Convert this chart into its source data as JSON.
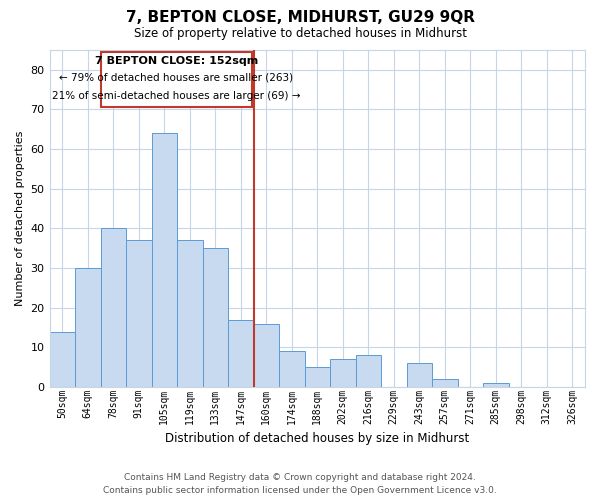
{
  "title": "7, BEPTON CLOSE, MIDHURST, GU29 9QR",
  "subtitle": "Size of property relative to detached houses in Midhurst",
  "xlabel": "Distribution of detached houses by size in Midhurst",
  "ylabel": "Number of detached properties",
  "bar_labels": [
    "50sqm",
    "64sqm",
    "78sqm",
    "91sqm",
    "105sqm",
    "119sqm",
    "133sqm",
    "147sqm",
    "160sqm",
    "174sqm",
    "188sqm",
    "202sqm",
    "216sqm",
    "229sqm",
    "243sqm",
    "257sqm",
    "271sqm",
    "285sqm",
    "298sqm",
    "312sqm",
    "326sqm"
  ],
  "bar_heights": [
    14,
    30,
    40,
    37,
    64,
    37,
    35,
    17,
    16,
    9,
    5,
    7,
    8,
    0,
    6,
    2,
    0,
    1,
    0,
    0,
    0
  ],
  "bar_color": "#c8daf0",
  "bar_edge_color": "#5b9bd5",
  "vline_x": 7.5,
  "vline_color": "#c0392b",
  "ylim": [
    0,
    85
  ],
  "yticks": [
    0,
    10,
    20,
    30,
    40,
    50,
    60,
    70,
    80
  ],
  "annotation_title": "7 BEPTON CLOSE: 152sqm",
  "annotation_line1": "← 79% of detached houses are smaller (263)",
  "annotation_line2": "21% of semi-detached houses are larger (69) →",
  "annotation_box_color": "#ffffff",
  "annotation_box_edge": "#c0392b",
  "footer_line1": "Contains HM Land Registry data © Crown copyright and database right 2024.",
  "footer_line2": "Contains public sector information licensed under the Open Government Licence v3.0.",
  "background_color": "#ffffff",
  "grid_color": "#c8d4e8"
}
